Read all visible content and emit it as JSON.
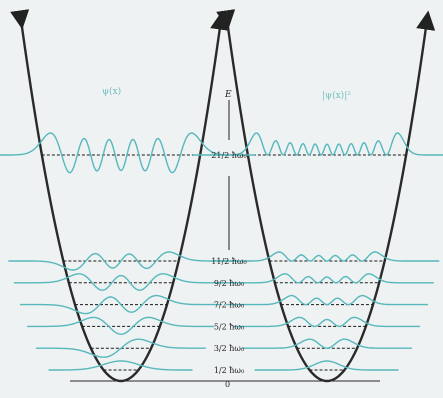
{
  "panels": {
    "left_title": "ψ(x)",
    "right_title": "|ψ(x)|²"
  },
  "axis": {
    "energy_label": "E",
    "zero_label": "0"
  },
  "levels": [
    {
      "n": 10,
      "label": "21/2 ħω₀"
    },
    {
      "n": 5,
      "label": "11/2 ħω₀"
    },
    {
      "n": 4,
      "label": "9/2 ħω₀"
    },
    {
      "n": 3,
      "label": "7/2 ħω₀"
    },
    {
      "n": 2,
      "label": "5/2 ħω₀"
    },
    {
      "n": 1,
      "label": "3/2 ħω₀"
    },
    {
      "n": 0,
      "label": "1/2 ħω₀"
    }
  ],
  "colors": {
    "wave": "#56b8bc",
    "potential": "#2a2a2a",
    "level_line": "#1a1a1a",
    "label": "#6fbfc2",
    "background": "#eef2f3"
  }
}
